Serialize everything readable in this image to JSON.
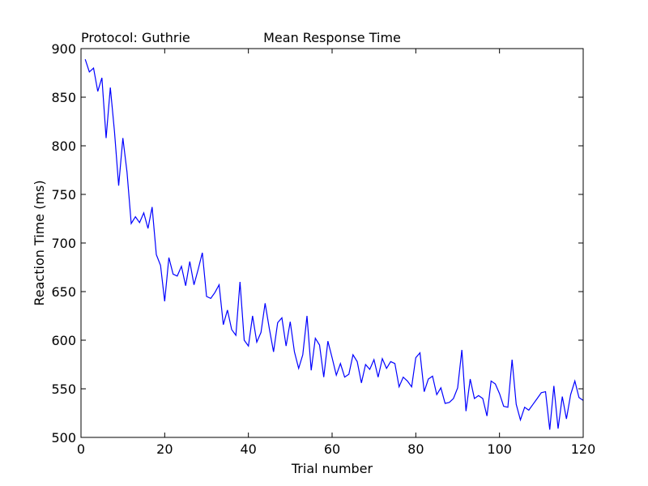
{
  "chart_data": {
    "type": "line",
    "title": "Mean Response Time",
    "subtitle": "Protocol: Guthrie",
    "xlabel": "Trial number",
    "ylabel": "Reaction Time (ms)",
    "xlim": [
      0,
      120
    ],
    "ylim": [
      500,
      900
    ],
    "xticks": [
      0,
      20,
      40,
      60,
      80,
      100,
      120
    ],
    "yticks": [
      500,
      550,
      600,
      650,
      700,
      750,
      800,
      850,
      900
    ],
    "grid": false,
    "legend": "none",
    "series": [
      {
        "color": "#0000ff",
        "x": [
          1,
          2,
          3,
          4,
          5,
          6,
          7,
          8,
          9,
          10,
          11,
          12,
          13,
          14,
          15,
          16,
          17,
          18,
          19,
          20,
          21,
          22,
          23,
          24,
          25,
          26,
          27,
          28,
          29,
          30,
          31,
          32,
          33,
          34,
          35,
          36,
          37,
          38,
          39,
          40,
          41,
          42,
          43,
          44,
          45,
          46,
          47,
          48,
          49,
          50,
          51,
          52,
          53,
          54,
          55,
          56,
          57,
          58,
          59,
          60,
          61,
          62,
          63,
          64,
          65,
          66,
          67,
          68,
          69,
          70,
          71,
          72,
          73,
          74,
          75,
          76,
          77,
          78,
          79,
          80,
          81,
          82,
          83,
          84,
          85,
          86,
          87,
          88,
          89,
          90,
          91,
          92,
          93,
          94,
          95,
          96,
          97,
          98,
          99,
          100,
          101,
          102,
          103,
          104,
          105,
          106,
          107,
          108,
          109,
          110,
          111,
          112,
          113,
          114,
          115,
          116,
          117,
          118,
          119,
          120
        ],
        "y": [
          889,
          876,
          880,
          856,
          870,
          808,
          860,
          815,
          759,
          808,
          773,
          720,
          727,
          721,
          731,
          715,
          737,
          688,
          677,
          640,
          685,
          668,
          666,
          676,
          656,
          681,
          657,
          673,
          690,
          645,
          643,
          649,
          657,
          616,
          631,
          611,
          605,
          660,
          600,
          594,
          625,
          598,
          608,
          638,
          612,
          588,
          618,
          623,
          594,
          619,
          588,
          571,
          585,
          625,
          569,
          602,
          595,
          562,
          599,
          582,
          564,
          576,
          562,
          565,
          585,
          578,
          556,
          575,
          570,
          580,
          562,
          581,
          571,
          578,
          576,
          552,
          562,
          558,
          552,
          582,
          587,
          547,
          560,
          563,
          544,
          551,
          535,
          536,
          540,
          551,
          590,
          527,
          560,
          540,
          543,
          540,
          522,
          558,
          555,
          545,
          532,
          531,
          580,
          534,
          518,
          531,
          528,
          534,
          540,
          546,
          547,
          508,
          553,
          509,
          542,
          519,
          544,
          558,
          541,
          538
        ]
      }
    ]
  }
}
